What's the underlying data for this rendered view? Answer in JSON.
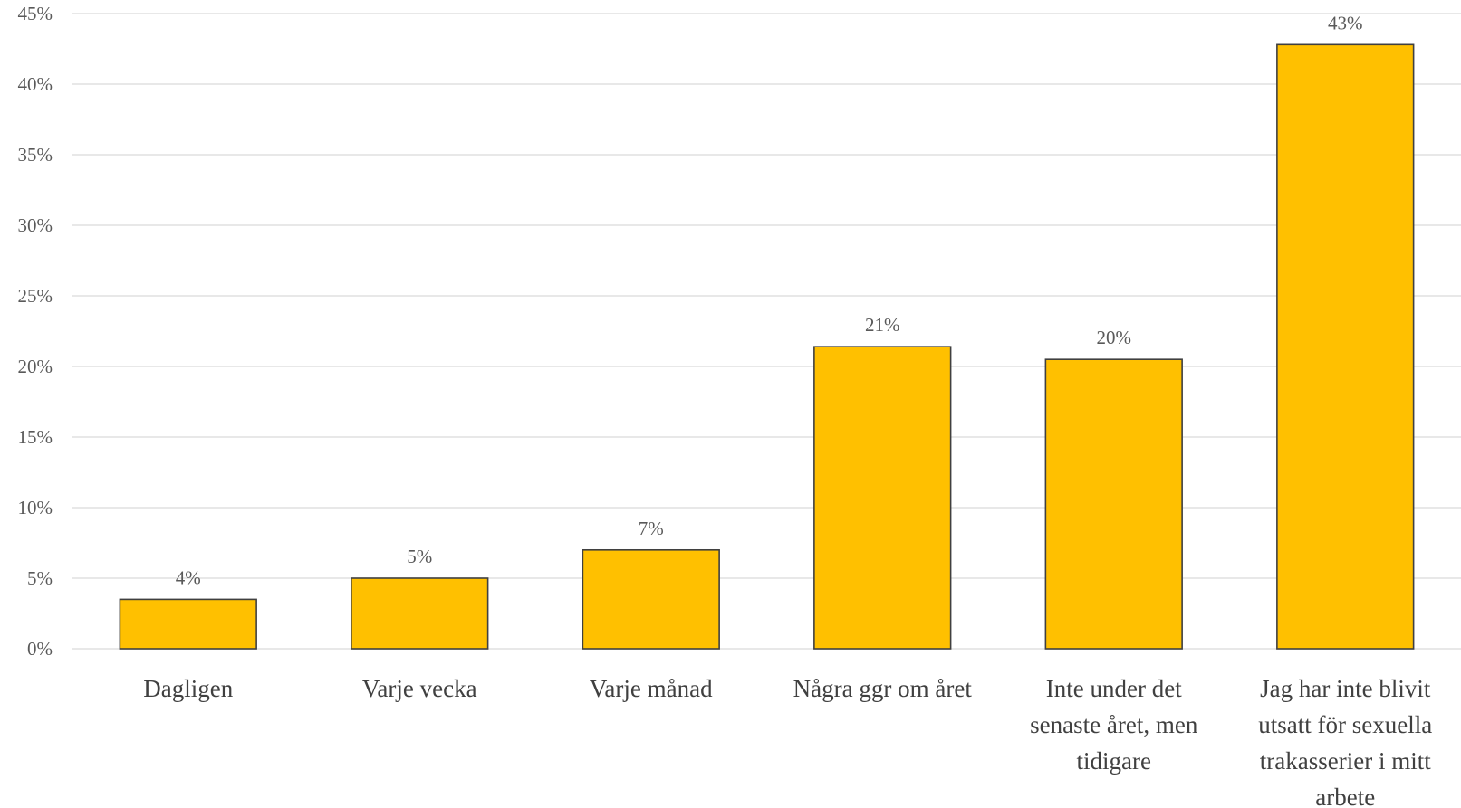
{
  "chart_data": {
    "type": "bar",
    "categories": [
      "Dagligen",
      "Varje vecka",
      "Varje månad",
      "Några ggr om året",
      "Inte under det senaste året, men tidigare",
      "Jag har inte blivit utsatt för sexuella trakasserier i mitt arbete"
    ],
    "category_lines": [
      [
        "Dagligen"
      ],
      [
        "Varje vecka"
      ],
      [
        "Varje månad"
      ],
      [
        "Några ggr om året"
      ],
      [
        "Inte under det",
        "senaste året, men",
        "tidigare"
      ],
      [
        "Jag har inte blivit",
        "utsatt för sexuella",
        "trakasserier i mitt",
        "arbete"
      ]
    ],
    "values": [
      3.5,
      5.0,
      7.0,
      21.4,
      20.5,
      42.8
    ],
    "data_labels": [
      "4%",
      "5%",
      "7%",
      "21%",
      "20%",
      "43%"
    ],
    "ylim": [
      0,
      45
    ],
    "y_ticks": [
      0,
      5,
      10,
      15,
      20,
      25,
      30,
      35,
      40,
      45
    ],
    "y_tick_labels": [
      "0%",
      "5%",
      "10%",
      "15%",
      "20%",
      "25%",
      "30%",
      "35%",
      "40%",
      "45%"
    ],
    "grid": true,
    "legend": "none",
    "colors": {
      "bar_fill": "#FFC000",
      "bar_stroke": "#404040",
      "grid": "#D9D9D9"
    }
  }
}
